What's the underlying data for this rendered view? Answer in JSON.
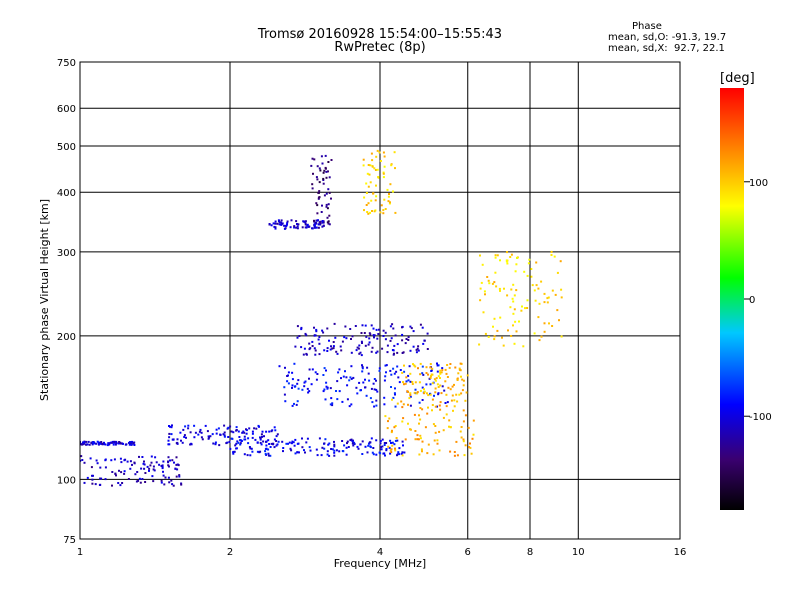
{
  "header": {
    "title": "Tromsø 20160928 15:54:00–15:55:43",
    "subtitle": "RwPretec (8p)"
  },
  "phase_info": {
    "heading": "Phase",
    "line_o": "mean, sd,O: -91.3, 19.7",
    "line_x": "mean, sd,X:  92.7, 22.1"
  },
  "colorbar": {
    "unit_label": "[deg]",
    "tick_labels": [
      "100",
      "0",
      "-100"
    ],
    "tick_values": [
      100,
      0,
      -100
    ],
    "range": [
      -180,
      180
    ]
  },
  "chart_data": {
    "type": "scatter",
    "xlabel": "Frequency [MHz]",
    "ylabel": "Stationary phase Virtual Height [km]",
    "xscale": "log",
    "yscale": "log",
    "xlim": [
      1,
      16
    ],
    "ylim": [
      75,
      750
    ],
    "x_ticks": [
      1,
      2,
      4,
      6,
      8,
      10,
      16
    ],
    "x_tick_labels": [
      "1",
      "2",
      "4",
      "6",
      "8",
      "10",
      "16"
    ],
    "y_ticks": [
      75,
      100,
      200,
      300,
      400,
      500,
      600,
      750
    ],
    "y_tick_labels": [
      "75",
      "100",
      "200",
      "300",
      "400",
      "500",
      "600",
      "750"
    ],
    "grid": true,
    "color_encoding": "phase (deg)",
    "traces": [
      {
        "x_range": [
          1.0,
          1.3
        ],
        "y_range": [
          118,
          120
        ],
        "phase": -105
      },
      {
        "x_range": [
          1.0,
          1.6
        ],
        "y_range": [
          97,
          112
        ],
        "phase": -110
      },
      {
        "x_range": [
          1.5,
          2.5
        ],
        "y_range": [
          118,
          130
        ],
        "phase": -100
      },
      {
        "x_range": [
          2.0,
          4.5
        ],
        "y_range": [
          112,
          122
        ],
        "phase": -95
      },
      {
        "x_range": [
          2.4,
          3.1
        ],
        "y_range": [
          335,
          350
        ],
        "phase": -110
      },
      {
        "x_range": [
          2.9,
          3.2
        ],
        "y_range": [
          340,
          480
        ],
        "phase": -135
      },
      {
        "x_range": [
          2.7,
          5.0
        ],
        "y_range": [
          182,
          212
        ],
        "phase": -110
      },
      {
        "x_range": [
          2.5,
          5.5
        ],
        "y_range": [
          142,
          175
        ],
        "phase": -90
      },
      {
        "x_range": [
          3.7,
          4.3
        ],
        "y_range": [
          360,
          490
        ],
        "phase": 95
      },
      {
        "x_range": [
          4.1,
          6.2
        ],
        "y_range": [
          112,
          150
        ],
        "phase": 110
      },
      {
        "x_range": [
          4.4,
          6.0
        ],
        "y_range": [
          150,
          175
        ],
        "phase": 105
      },
      {
        "x_range": [
          6.3,
          9.5
        ],
        "y_range": [
          190,
          300
        ],
        "phase": 95
      }
    ]
  }
}
